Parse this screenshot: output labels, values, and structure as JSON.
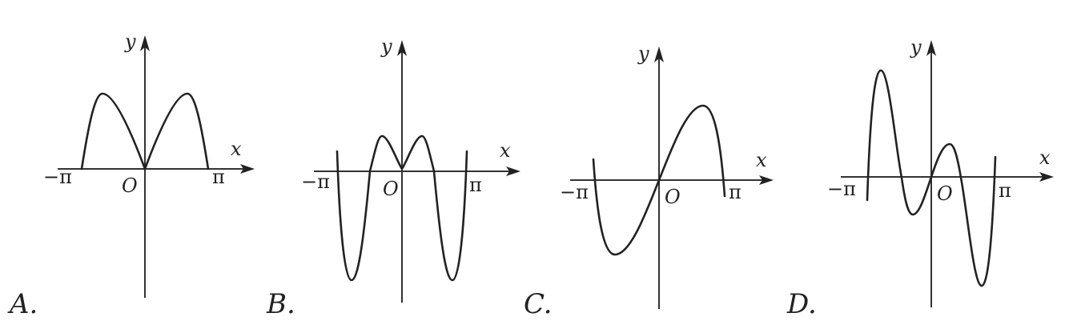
{
  "options": [
    {
      "choice": "A.",
      "labels": {
        "y": "y",
        "x": "x",
        "origin": "O",
        "neg_pi": "−π",
        "pi": "π"
      },
      "curve_name": "even-curve-two-peaks"
    },
    {
      "choice": "B.",
      "labels": {
        "y": "y",
        "x": "x",
        "origin": "O",
        "neg_pi": "−π",
        "pi": "π"
      },
      "curve_name": "even-curve-w-shape"
    },
    {
      "choice": "C.",
      "labels": {
        "y": "y",
        "x": "x",
        "origin": "O",
        "neg_pi": "−π",
        "pi": "π"
      },
      "curve_name": "odd-curve-single-swing"
    },
    {
      "choice": "D.",
      "labels": {
        "y": "y",
        "x": "x",
        "origin": "O",
        "neg_pi": "−π",
        "pi": "π"
      },
      "curve_name": "odd-curve-double-swing"
    }
  ]
}
